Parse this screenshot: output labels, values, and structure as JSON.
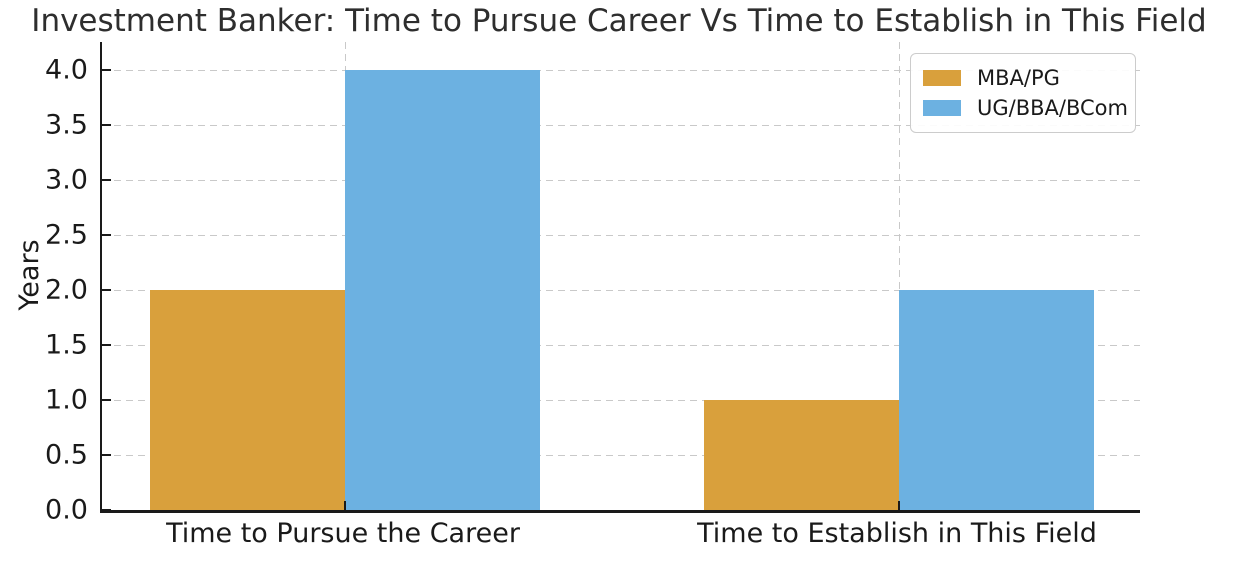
{
  "title": "Investment Banker: Time to Pursue Career Vs Time to Establish in This Field",
  "chart_data": {
    "type": "bar",
    "categories": [
      "Time to Pursue the Career",
      "Time to Establish in This Field"
    ],
    "series": [
      {
        "name": "MBA/PG",
        "color": "#D9A03C",
        "values": [
          2,
          1
        ]
      },
      {
        "name": "UG/BBA/BCom",
        "color": "#6CB1E1",
        "values": [
          4,
          2
        ]
      }
    ],
    "xlabel": "",
    "ylabel": "Years",
    "ylim": [
      0,
      4.25
    ],
    "yticks": [
      0.0,
      0.5,
      1.0,
      1.5,
      2.0,
      2.5,
      3.0,
      3.5,
      4.0
    ],
    "ytick_labels": [
      "0.0",
      "0.5",
      "1.0",
      "1.5",
      "2.0",
      "2.5",
      "3.0",
      "3.5",
      "4.0"
    ],
    "grid": "dashed, horizontal at every ytick and vertical at each category center",
    "grid_color": "#c9c9c9",
    "axis_color": "#1a1a1a",
    "legend_position": "upper right",
    "legend_entries": [
      "MBA/PG",
      "UG/BBA/BCom"
    ]
  }
}
